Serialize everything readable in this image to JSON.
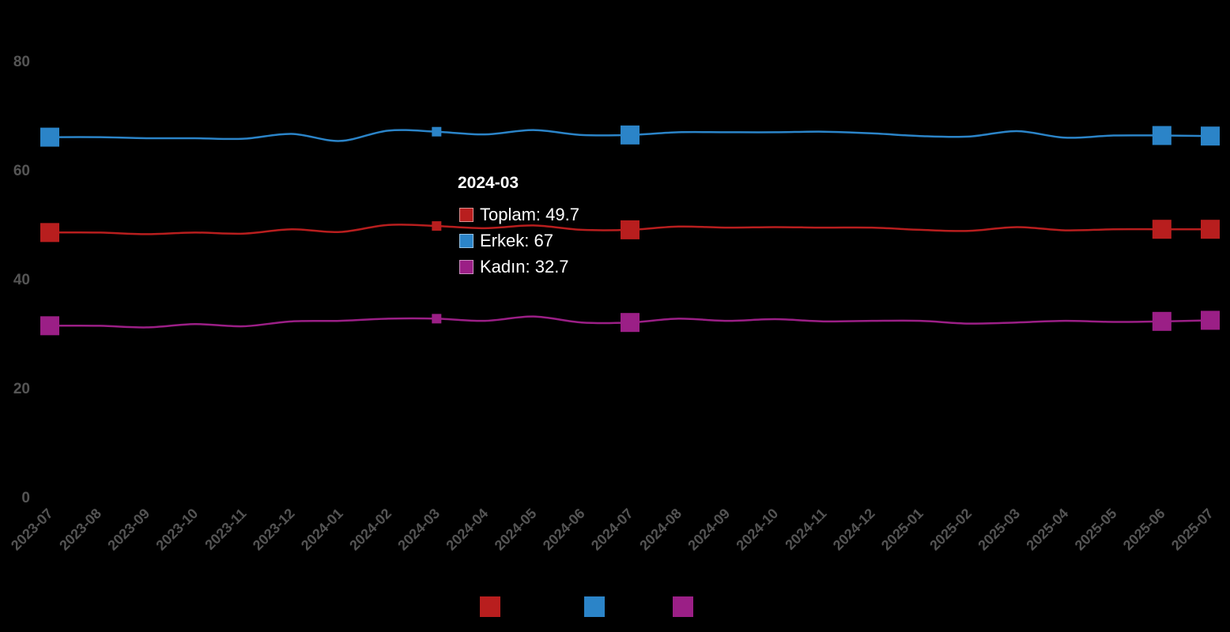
{
  "chart_data": {
    "type": "line",
    "title": "",
    "xlabel": "",
    "ylabel": "",
    "ylim": [
      0,
      80
    ],
    "yticks": [
      0,
      20,
      40,
      60,
      80
    ],
    "grid": false,
    "legend": "bottom",
    "x": [
      "2023-07",
      "2023-08",
      "2023-09",
      "2023-10",
      "2023-11",
      "2023-12",
      "2024-01",
      "2024-02",
      "2024-03",
      "2024-04",
      "2024-05",
      "2024-06",
      "2024-07",
      "2024-08",
      "2024-09",
      "2024-10",
      "2024-11",
      "2024-12",
      "2025-01",
      "2025-02",
      "2025-03",
      "2025-04",
      "2025-05",
      "2025-06",
      "2025-07"
    ],
    "series": [
      {
        "name": "Toplam",
        "color": "#b81e1e",
        "values": [
          48.5,
          48.5,
          48.2,
          48.5,
          48.3,
          49.1,
          48.6,
          49.9,
          49.7,
          49.3,
          49.8,
          49.0,
          49.0,
          49.6,
          49.4,
          49.5,
          49.4,
          49.4,
          49.0,
          48.8,
          49.5,
          48.9,
          49.1,
          49.1,
          49.1
        ]
      },
      {
        "name": "Erkek",
        "color": "#2b84c8",
        "values": [
          66.0,
          66.0,
          65.8,
          65.8,
          65.7,
          66.6,
          65.3,
          67.2,
          67.0,
          66.5,
          67.3,
          66.4,
          66.4,
          66.9,
          66.9,
          66.9,
          67.0,
          66.7,
          66.2,
          66.1,
          67.1,
          65.9,
          66.3,
          66.3,
          66.2
        ]
      },
      {
        "name": "Kadın",
        "color": "#9b1f86",
        "values": [
          31.4,
          31.4,
          31.1,
          31.7,
          31.3,
          32.2,
          32.3,
          32.7,
          32.7,
          32.3,
          33.1,
          32.0,
          32.0,
          32.7,
          32.3,
          32.6,
          32.2,
          32.3,
          32.3,
          31.8,
          32.0,
          32.3,
          32.1,
          32.2,
          32.4
        ]
      }
    ],
    "tooltip": {
      "title": "2024-03",
      "rows": [
        "Toplam: 49.7",
        "Erkek: 67",
        "Kadın: 32.7"
      ]
    },
    "highlighted_x_index": 8,
    "marked_x_indices": [
      0,
      12,
      23,
      24
    ]
  }
}
